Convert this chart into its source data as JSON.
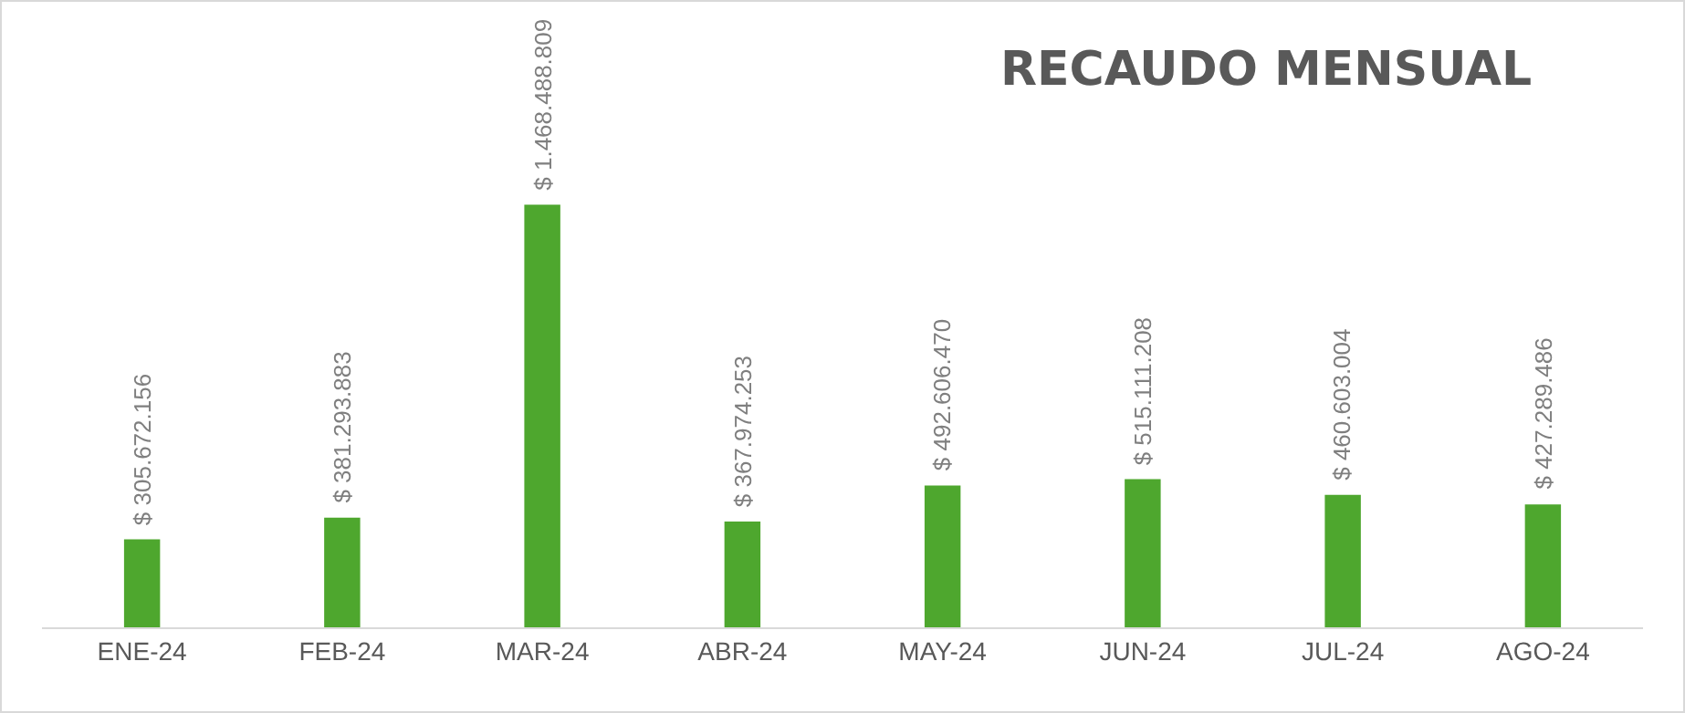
{
  "chart_data": {
    "type": "bar",
    "title": "RECAUDO MENSUAL",
    "categories": [
      "ENE-24",
      "FEB-24",
      "MAR-24",
      "ABR-24",
      "MAY-24",
      "JUN-24",
      "JUL-24",
      "AGO-24"
    ],
    "values": [
      305672156,
      381293883,
      1468488809,
      367974253,
      492606470,
      515111208,
      460603004,
      427289486
    ],
    "value_labels": [
      "$ 305.672.156",
      "$ 381.293.883",
      "$ 1.468.488.809",
      "$ 367.974.253",
      "$ 492.606.470",
      "$ 515.111.208",
      "$ 460.603.004",
      "$ 427.289.486"
    ],
    "color": "#4ea72e"
  }
}
